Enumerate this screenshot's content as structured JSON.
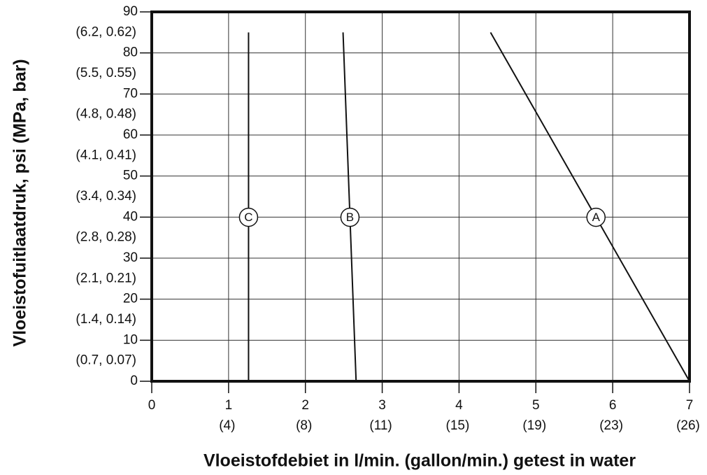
{
  "chart_data": {
    "type": "line",
    "xlabel": "Vloeistofdebiet in l/min. (gallon/min.) getest in water",
    "ylabel": "Vloeistofuitlaatdruk, psi (MPa, bar)",
    "xlim": [
      0,
      7
    ],
    "xticks": [
      0,
      1,
      2,
      3,
      4,
      5,
      6,
      7
    ],
    "xtick_sublabels": [
      "(4)",
      "(8)",
      "(11)",
      "(15)",
      "(19)",
      "(23)",
      "(26)"
    ],
    "ylim": [
      0,
      90
    ],
    "yticks": [
      0,
      10,
      20,
      30,
      40,
      50,
      60,
      70,
      80,
      90
    ],
    "ytick_sublabels": [
      "(0.7, 0.07)",
      "(1.4, 0.14)",
      "(2.1, 0.21)",
      "(2.8, 0.28)",
      "(3.4, 0.34)",
      "(4.1, 0.41)",
      "(4.8, 0.48)",
      "(5.5, 0.55)",
      "(6.2, 0.62)"
    ],
    "grid": true,
    "series": [
      {
        "name": "A",
        "color": "#111111",
        "x": [
          7.0,
          4.41
        ],
        "y": [
          0,
          85
        ]
      },
      {
        "name": "B",
        "color": "#111111",
        "x": [
          2.66,
          2.49
        ],
        "y": [
          0,
          85
        ]
      },
      {
        "name": "C",
        "color": "#111111",
        "x": [
          1.26,
          1.26
        ],
        "y": [
          0,
          85
        ]
      }
    ]
  }
}
